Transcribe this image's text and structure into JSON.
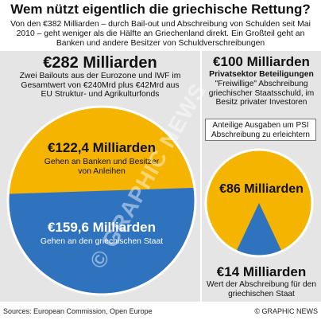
{
  "header": {
    "title": "Wem nützt eigentlich die griechische Rettung?",
    "intro": "Von den €382 Milliarden – durch Bail-out und Abschreibung von Schulden seit Mai 2010 – geht weniger als die Hälfte an Griechenland direkt. Ein Großteil geht an Banken und andere Besitzer von Schuldverschreibungen"
  },
  "left_panel": {
    "amount": "€282 Milliarden",
    "description": "Zwei Bailouts aus der Eurozone und IWF im Gesamtwert von €240Mrd plus €42Mrd aus EU Struktur- und Agrikulturfonds"
  },
  "right_panel": {
    "amount": "€100 Milliarden",
    "subtitle": "Privatsektor Beteiligungen",
    "description": "\"Freiwillige\" Abschreibung griechischer Staatsschuld, im Besitz privater Investoren",
    "note": "Anteilige Ausgaben um PSI Abschreibung zu erleichtern"
  },
  "bottom_right": {
    "amount": "€14 Milliarden",
    "description": "Wert der Abschreibung für den griechischen Staat"
  },
  "watermark": "© GRAPHIC NEWS",
  "footer": {
    "sources": "Sources: European Commission, Open Europe",
    "credit": "© GRAPHIC NEWS"
  },
  "colors": {
    "yellow": "#f5b400",
    "blue": "#2f73bf",
    "panel": "#e5e5e5",
    "pie_border": "#ffffff"
  },
  "chart_data": [
    {
      "type": "pie",
      "title": "€282 Milliarden",
      "slices": [
        {
          "label": "Gehen an Banken und Besitzer von Anleihen",
          "amount_label": "€122,4 Milliarden",
          "value": 122.4,
          "color": "#f5b400"
        },
        {
          "label": "Gehen an den griechischen Staat",
          "amount_label": "€159,6 Milliarden",
          "value": 159.6,
          "color": "#2f73bf"
        }
      ]
    },
    {
      "type": "pie",
      "title": "€100 Milliarden",
      "slices": [
        {
          "label": "Anteilige Ausgaben um PSI Abschreibung zu erleichtern",
          "amount_label": "€86 Milliarden",
          "value": 86,
          "color": "#f5b400"
        },
        {
          "label": "Wert der Abschreibung für den griechischen Staat",
          "amount_label": "€14 Milliarden",
          "value": 14,
          "color": "#2f73bf"
        }
      ]
    }
  ]
}
